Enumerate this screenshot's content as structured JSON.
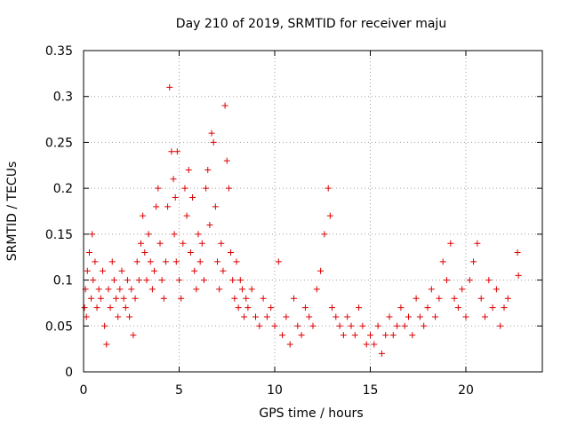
{
  "chart_data": {
    "type": "scatter",
    "title": "Day 210 of 2019, SRMTID for receiver maju",
    "xlabel": "GPS time / hours",
    "ylabel": "SRMTID / TECUs",
    "xlim": [
      0,
      24
    ],
    "ylim": [
      0,
      0.35
    ],
    "x_ticks": [
      0,
      5,
      10,
      15,
      20
    ],
    "x_tick_labels": [
      "0",
      "5",
      "10",
      "15",
      "20"
    ],
    "y_ticks": [
      0,
      0.05,
      0.1,
      0.15,
      0.2,
      0.25,
      0.3,
      0.35
    ],
    "y_tick_labels": [
      "0",
      "0.05",
      "0.1",
      "0.15",
      "0.2",
      "0.25",
      "0.3",
      "0.35"
    ],
    "grid": true,
    "marker": "plus",
    "color": "#dd0000",
    "series": [
      {
        "name": "SRMTID",
        "points": [
          [
            0.05,
            0.07
          ],
          [
            0.1,
            0.09
          ],
          [
            0.15,
            0.06
          ],
          [
            0.2,
            0.11
          ],
          [
            0.3,
            0.13
          ],
          [
            0.4,
            0.08
          ],
          [
            0.45,
            0.15
          ],
          [
            0.5,
            0.1
          ],
          [
            0.6,
            0.12
          ],
          [
            0.7,
            0.07
          ],
          [
            0.8,
            0.09
          ],
          [
            0.9,
            0.08
          ],
          [
            1.0,
            0.11
          ],
          [
            1.1,
            0.05
          ],
          [
            1.2,
            0.03
          ],
          [
            1.3,
            0.09
          ],
          [
            1.4,
            0.07
          ],
          [
            1.5,
            0.12
          ],
          [
            1.6,
            0.1
          ],
          [
            1.7,
            0.08
          ],
          [
            1.8,
            0.06
          ],
          [
            1.9,
            0.09
          ],
          [
            2.0,
            0.11
          ],
          [
            2.1,
            0.08
          ],
          [
            2.2,
            0.07
          ],
          [
            2.3,
            0.1
          ],
          [
            2.4,
            0.06
          ],
          [
            2.5,
            0.09
          ],
          [
            2.6,
            0.04
          ],
          [
            2.7,
            0.08
          ],
          [
            2.8,
            0.12
          ],
          [
            2.9,
            0.1
          ],
          [
            3.0,
            0.14
          ],
          [
            3.1,
            0.17
          ],
          [
            3.2,
            0.13
          ],
          [
            3.3,
            0.1
          ],
          [
            3.4,
            0.15
          ],
          [
            3.5,
            0.12
          ],
          [
            3.6,
            0.09
          ],
          [
            3.7,
            0.11
          ],
          [
            3.8,
            0.18
          ],
          [
            3.9,
            0.2
          ],
          [
            4.0,
            0.14
          ],
          [
            4.1,
            0.1
          ],
          [
            4.2,
            0.08
          ],
          [
            4.3,
            0.12
          ],
          [
            4.4,
            0.18
          ],
          [
            4.5,
            0.31
          ],
          [
            4.6,
            0.24
          ],
          [
            4.7,
            0.21
          ],
          [
            4.75,
            0.15
          ],
          [
            4.8,
            0.19
          ],
          [
            4.85,
            0.12
          ],
          [
            4.9,
            0.24
          ],
          [
            5.0,
            0.1
          ],
          [
            5.1,
            0.08
          ],
          [
            5.2,
            0.14
          ],
          [
            5.3,
            0.2
          ],
          [
            5.4,
            0.17
          ],
          [
            5.5,
            0.22
          ],
          [
            5.6,
            0.13
          ],
          [
            5.7,
            0.19
          ],
          [
            5.8,
            0.11
          ],
          [
            5.9,
            0.09
          ],
          [
            6.0,
            0.15
          ],
          [
            6.1,
            0.12
          ],
          [
            6.2,
            0.14
          ],
          [
            6.3,
            0.1
          ],
          [
            6.4,
            0.2
          ],
          [
            6.5,
            0.22
          ],
          [
            6.6,
            0.16
          ],
          [
            6.7,
            0.26
          ],
          [
            6.8,
            0.25
          ],
          [
            6.9,
            0.18
          ],
          [
            7.0,
            0.12
          ],
          [
            7.1,
            0.09
          ],
          [
            7.2,
            0.14
          ],
          [
            7.3,
            0.11
          ],
          [
            7.4,
            0.29
          ],
          [
            7.5,
            0.23
          ],
          [
            7.6,
            0.2
          ],
          [
            7.7,
            0.13
          ],
          [
            7.8,
            0.1
          ],
          [
            7.9,
            0.08
          ],
          [
            8.0,
            0.12
          ],
          [
            8.1,
            0.07
          ],
          [
            8.2,
            0.1
          ],
          [
            8.3,
            0.09
          ],
          [
            8.4,
            0.06
          ],
          [
            8.5,
            0.08
          ],
          [
            8.6,
            0.07
          ],
          [
            8.8,
            0.09
          ],
          [
            9.0,
            0.06
          ],
          [
            9.2,
            0.05
          ],
          [
            9.4,
            0.08
          ],
          [
            9.6,
            0.06
          ],
          [
            9.8,
            0.07
          ],
          [
            10.0,
            0.05
          ],
          [
            10.2,
            0.12
          ],
          [
            10.4,
            0.04
          ],
          [
            10.6,
            0.06
          ],
          [
            10.8,
            0.03
          ],
          [
            11.0,
            0.08
          ],
          [
            11.2,
            0.05
          ],
          [
            11.4,
            0.04
          ],
          [
            11.6,
            0.07
          ],
          [
            11.8,
            0.06
          ],
          [
            12.0,
            0.05
          ],
          [
            12.2,
            0.09
          ],
          [
            12.4,
            0.11
          ],
          [
            12.6,
            0.15
          ],
          [
            12.8,
            0.2
          ],
          [
            12.9,
            0.17
          ],
          [
            13.0,
            0.07
          ],
          [
            13.2,
            0.06
          ],
          [
            13.4,
            0.05
          ],
          [
            13.6,
            0.04
          ],
          [
            13.8,
            0.06
          ],
          [
            14.0,
            0.05
          ],
          [
            14.2,
            0.04
          ],
          [
            14.4,
            0.07
          ],
          [
            14.6,
            0.05
          ],
          [
            14.8,
            0.03
          ],
          [
            15.0,
            0.04
          ],
          [
            15.2,
            0.03
          ],
          [
            15.4,
            0.05
          ],
          [
            15.6,
            0.02
          ],
          [
            15.8,
            0.04
          ],
          [
            16.0,
            0.06
          ],
          [
            16.2,
            0.04
          ],
          [
            16.4,
            0.05
          ],
          [
            16.6,
            0.07
          ],
          [
            16.8,
            0.05
          ],
          [
            17.0,
            0.06
          ],
          [
            17.2,
            0.04
          ],
          [
            17.4,
            0.08
          ],
          [
            17.6,
            0.06
          ],
          [
            17.8,
            0.05
          ],
          [
            18.0,
            0.07
          ],
          [
            18.2,
            0.09
          ],
          [
            18.4,
            0.06
          ],
          [
            18.6,
            0.08
          ],
          [
            18.8,
            0.12
          ],
          [
            19.0,
            0.1
          ],
          [
            19.2,
            0.14
          ],
          [
            19.4,
            0.08
          ],
          [
            19.6,
            0.07
          ],
          [
            19.8,
            0.09
          ],
          [
            20.0,
            0.06
          ],
          [
            20.2,
            0.1
          ],
          [
            20.4,
            0.12
          ],
          [
            20.6,
            0.14
          ],
          [
            20.8,
            0.08
          ],
          [
            21.0,
            0.06
          ],
          [
            21.2,
            0.1
          ],
          [
            21.4,
            0.07
          ],
          [
            21.6,
            0.09
          ],
          [
            21.8,
            0.05
          ],
          [
            22.0,
            0.07
          ],
          [
            22.2,
            0.08
          ],
          [
            22.7,
            0.13
          ],
          [
            22.75,
            0.105
          ]
        ]
      }
    ]
  }
}
